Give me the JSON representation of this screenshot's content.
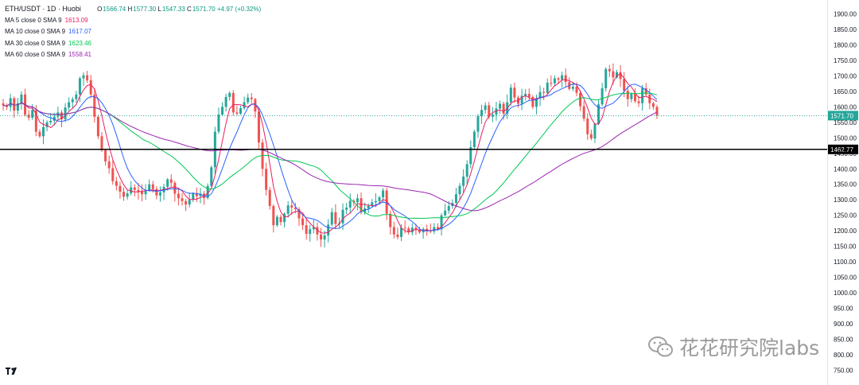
{
  "symbol_title": "ETH/USDT · 1D · Huobi",
  "ohlc": {
    "o_label": "O",
    "o": "1566.74",
    "h_label": "H",
    "h": "1577.30",
    "l_label": "L",
    "l": "1547.33",
    "c_label": "C",
    "c": "1571.70",
    "change": "+4.97 (+0.32%)"
  },
  "indicators": [
    {
      "label": "MA 5 close 0 SMA 9",
      "value": "1613.09",
      "color": "#e91e63"
    },
    {
      "label": "MA 10 close 0 SMA 9",
      "value": "1617.07",
      "color": "#2962ff"
    },
    {
      "label": "MA 30 close 0 SMA 9",
      "value": "1623.46",
      "color": "#00c853"
    },
    {
      "label": "MA 60 close 0 SMA 9",
      "value": "1558.41",
      "color": "#9c27b0"
    }
  ],
  "watermark": "花花研究院labs",
  "colors": {
    "up": "#26a69a",
    "down": "#ef5350",
    "price_line": "#26a69a",
    "hline": "#000000",
    "ma5": "#e91e63",
    "ma10": "#2962ff",
    "ma30": "#00c853",
    "ma60": "#9c27b0"
  },
  "chart_data": {
    "type": "candlestick",
    "ylim": [
      720,
      1925
    ],
    "y_ticks": [
      1900,
      1850,
      1800,
      1750,
      1700,
      1650,
      1600,
      1550,
      1500,
      1450,
      1400,
      1350,
      1300,
      1250,
      1200,
      1150,
      1100,
      1050,
      1000,
      950,
      900,
      850,
      800,
      750
    ],
    "y_tick_labels": [
      "1900.00",
      "1850.00",
      "1800.00",
      "1750.00",
      "1700.00",
      "1650.00",
      "1600.00",
      "1550.00",
      "1500.00",
      "1450.00",
      "1400.00",
      "1350.00",
      "1300.00",
      "1250.00",
      "1200.00",
      "1150.00",
      "1100.00",
      "1050.00",
      "1000.00",
      "950.00",
      "900.00",
      "850.00",
      "800.00",
      "750.00"
    ],
    "last_price": 1571.7,
    "last_price_label": "1571.70",
    "horizontal_line": 1462.77,
    "horizontal_line_label": "1462.77",
    "close_series": [
      1605,
      1600,
      1628,
      1588,
      1612,
      1640,
      1575,
      1565,
      1590,
      1520,
      1505,
      1535,
      1550,
      1555,
      1568,
      1582,
      1560,
      1598,
      1615,
      1625,
      1640,
      1692,
      1702,
      1686,
      1640,
      1568,
      1505,
      1460,
      1424,
      1402,
      1360,
      1345,
      1326,
      1310,
      1321,
      1340,
      1332,
      1326,
      1318,
      1330,
      1350,
      1335,
      1314,
      1324,
      1342,
      1366,
      1355,
      1320,
      1305,
      1296,
      1285,
      1300,
      1320,
      1312,
      1320,
      1306,
      1345,
      1405,
      1520,
      1575,
      1600,
      1632,
      1645,
      1582,
      1578,
      1596,
      1615,
      1630,
      1625,
      1585,
      1485,
      1400,
      1332,
      1280,
      1218,
      1245,
      1228,
      1255,
      1282,
      1275,
      1270,
      1240,
      1218,
      1190,
      1205,
      1212,
      1188,
      1172,
      1185,
      1220,
      1260,
      1222,
      1224,
      1268,
      1275,
      1297,
      1292,
      1305,
      1260,
      1272,
      1280,
      1292,
      1296,
      1308,
      1330,
      1255,
      1212,
      1188,
      1180,
      1210,
      1208,
      1195,
      1210,
      1202,
      1195,
      1206,
      1200,
      1198,
      1212,
      1205,
      1250,
      1265,
      1280,
      1290,
      1318,
      1345,
      1375,
      1415,
      1470,
      1520,
      1570,
      1590,
      1605,
      1568,
      1575,
      1595,
      1610,
      1578,
      1615,
      1662,
      1630,
      1610,
      1636,
      1642,
      1632,
      1600,
      1627,
      1648,
      1645,
      1678,
      1676,
      1692,
      1688,
      1702,
      1680,
      1658,
      1665,
      1645,
      1602,
      1562,
      1512,
      1498,
      1545,
      1608,
      1660,
      1722,
      1715,
      1695,
      1712,
      1690,
      1652,
      1625,
      1642,
      1618,
      1612,
      1660,
      1640,
      1612,
      1600,
      1572
    ]
  }
}
